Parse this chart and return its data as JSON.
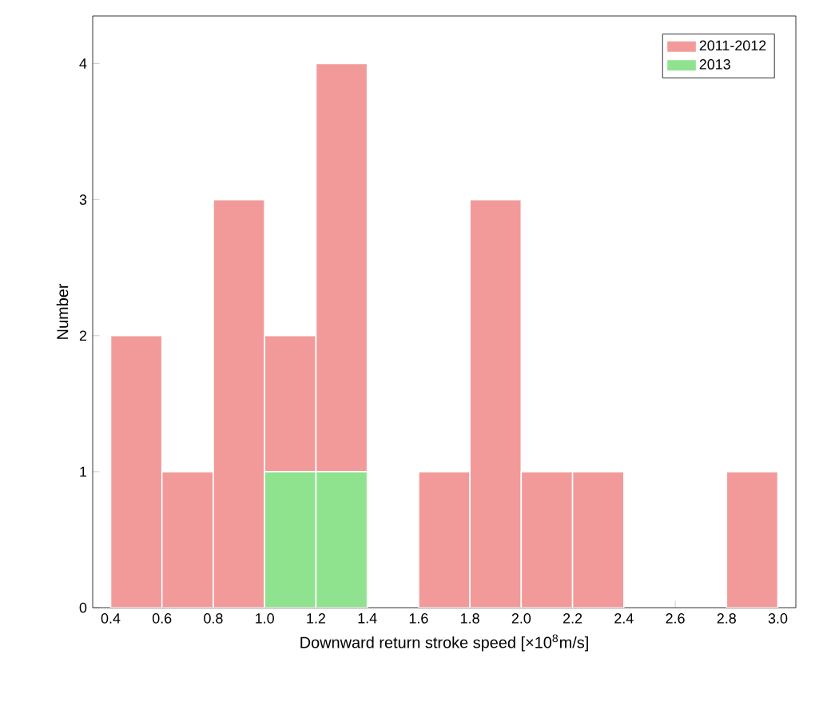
{
  "chart_data": {
    "type": "histogram",
    "xlabel": "Downward return stroke speed [×10$^{8}$m/s]",
    "ylabel": "Number",
    "bins": [
      0.4,
      0.6,
      0.8,
      1.0,
      1.2,
      1.4,
      1.6,
      1.8,
      2.0,
      2.2,
      2.4,
      2.6,
      2.8,
      3.0
    ],
    "series": [
      {
        "name": "2011-2012",
        "color": "#f29a9a",
        "values": [
          2,
          1,
          3,
          2,
          4,
          0,
          1,
          3,
          1,
          1,
          0,
          0,
          1
        ]
      },
      {
        "name": "2013",
        "color": "#8fe38f",
        "values": [
          null,
          null,
          null,
          1,
          1,
          null,
          null,
          null,
          null,
          null,
          null,
          null,
          null
        ]
      }
    ],
    "xlim": [
      0.33,
      3.07
    ],
    "ylim": [
      0,
      4.35
    ],
    "xticks": [
      {
        "value": 0.4,
        "label": "0.4"
      },
      {
        "value": 0.6,
        "label": "0.6"
      },
      {
        "value": 0.8,
        "label": "0.8"
      },
      {
        "value": 1.0,
        "label": "1.0"
      },
      {
        "value": 1.2,
        "label": "1.2"
      },
      {
        "value": 1.4,
        "label": "1.4"
      },
      {
        "value": 1.6,
        "label": "1.6"
      },
      {
        "value": 1.8,
        "label": "1.8"
      },
      {
        "value": 2.0,
        "label": "2.0"
      },
      {
        "value": 2.2,
        "label": "2.2"
      },
      {
        "value": 2.4,
        "label": "2.4"
      },
      {
        "value": 2.6,
        "label": "2.6"
      },
      {
        "value": 2.8,
        "label": "2.8"
      },
      {
        "value": 3.0,
        "label": "3.0"
      }
    ],
    "yticks": [
      0,
      1,
      2,
      3,
      4
    ],
    "legend": "top right",
    "grid": false
  }
}
